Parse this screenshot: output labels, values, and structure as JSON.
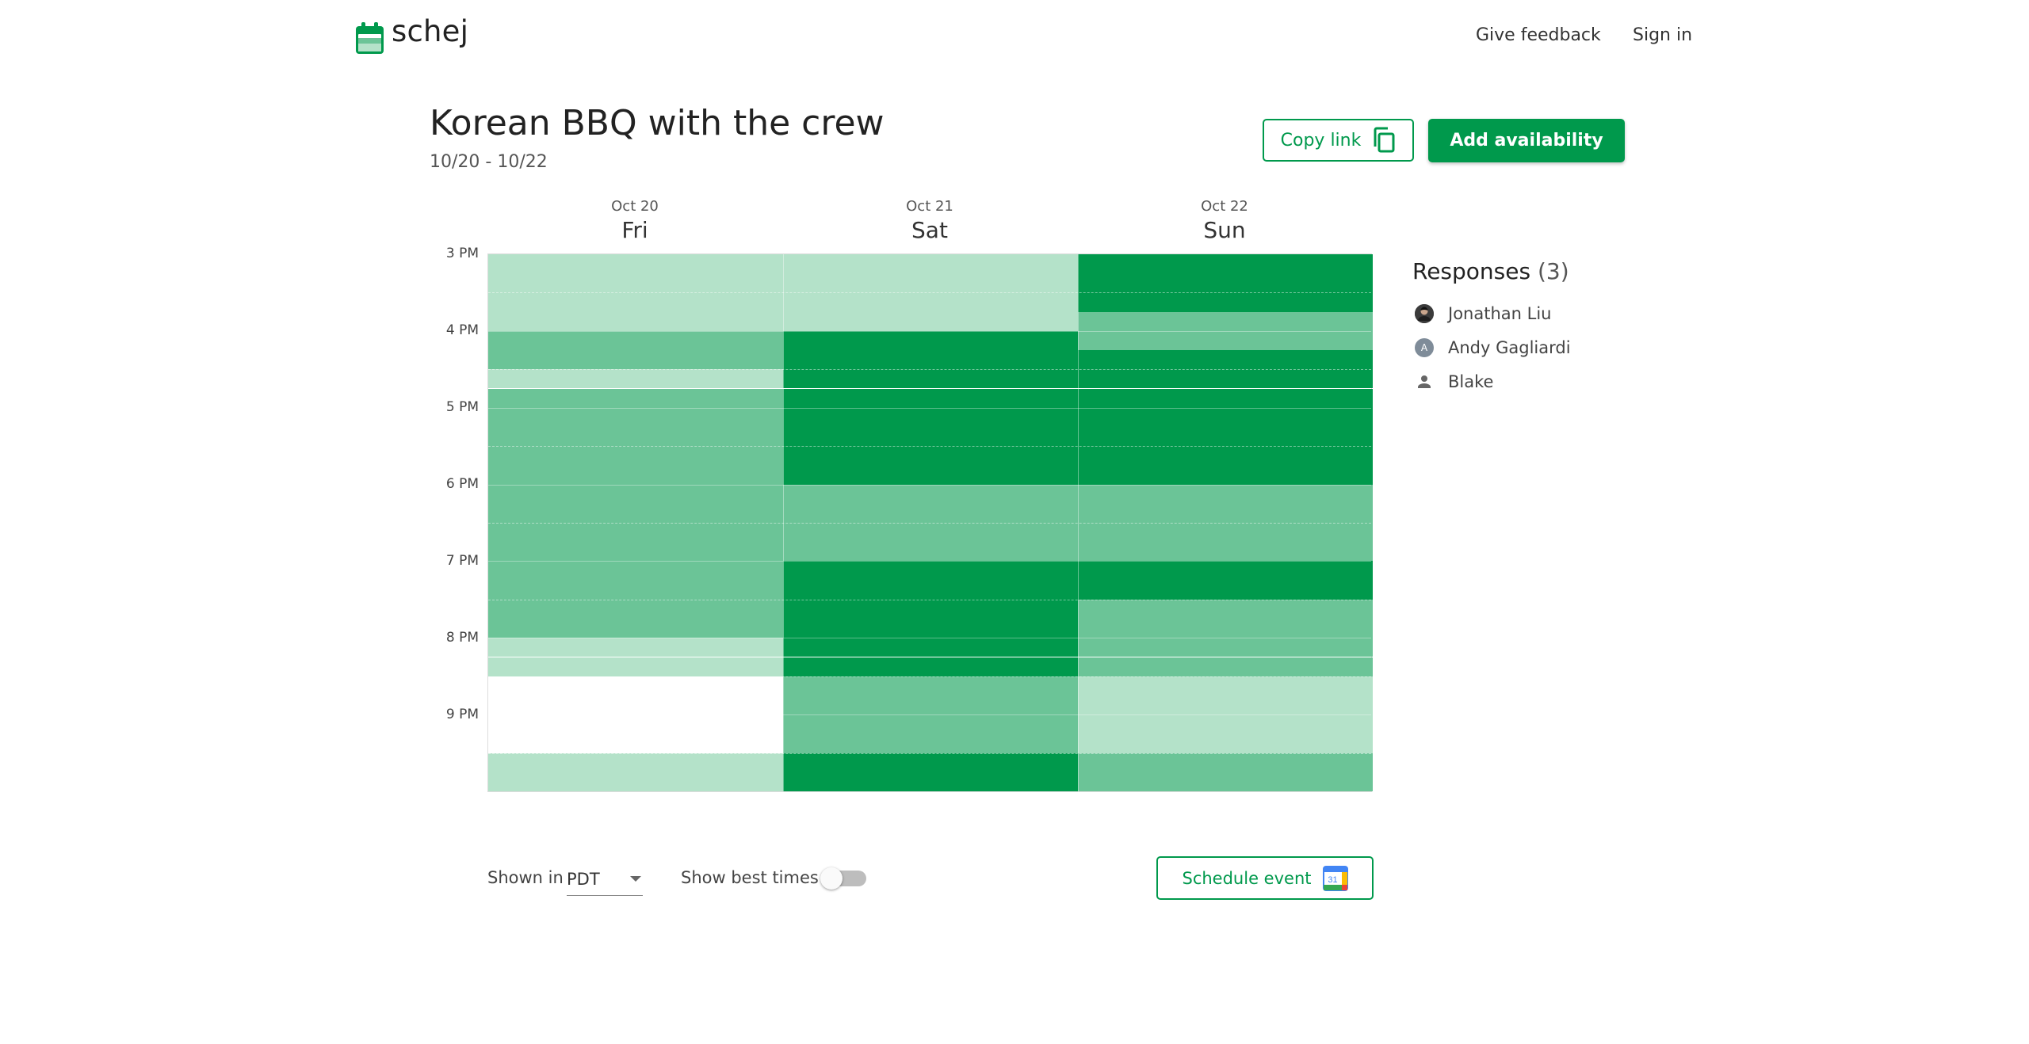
{
  "header": {
    "logo_text": "schej",
    "links": {
      "feedback": "Give feedback",
      "signin": "Sign in"
    }
  },
  "event": {
    "title": "Korean BBQ with the crew",
    "dates": "10/20 - 10/22"
  },
  "actions": {
    "copy_link": "Copy link",
    "add_availability": "Add availability"
  },
  "days": [
    {
      "date": "Oct 20",
      "name": "Fri"
    },
    {
      "date": "Oct 21",
      "name": "Sat"
    },
    {
      "date": "Oct 22",
      "name": "Sun"
    }
  ],
  "time_labels": [
    "3 PM",
    "4 PM",
    "5 PM",
    "6 PM",
    "7 PM",
    "8 PM",
    "9 PM"
  ],
  "availability": {
    "total_responses": 3,
    "slot_minutes": 15,
    "start_time": "3 PM",
    "colors": [
      "#ffffff",
      "#b4e2c9",
      "#6bc497",
      "#00994c"
    ],
    "counts": [
      [
        1,
        1,
        1,
        1,
        2,
        2,
        1,
        2,
        2,
        2,
        2,
        2,
        2,
        2,
        2,
        2,
        2,
        2,
        2,
        2,
        1,
        1,
        0,
        0,
        0,
        0,
        1,
        1
      ],
      [
        1,
        1,
        1,
        1,
        3,
        3,
        3,
        3,
        3,
        3,
        3,
        3,
        2,
        2,
        2,
        2,
        3,
        3,
        3,
        3,
        3,
        3,
        2,
        2,
        2,
        2,
        3,
        3
      ],
      [
        3,
        3,
        3,
        2,
        2,
        3,
        3,
        3,
        3,
        3,
        3,
        3,
        2,
        2,
        2,
        2,
        3,
        3,
        2,
        2,
        2,
        2,
        1,
        1,
        1,
        1,
        2,
        2
      ]
    ]
  },
  "responses": {
    "title": "Responses",
    "count": "(3)",
    "people": [
      {
        "name": "Jonathan Liu",
        "icon": "photo-avatar"
      },
      {
        "name": "Andy Gagliardi",
        "initial": "A",
        "icon": "letter-avatar"
      },
      {
        "name": "Blake",
        "icon": "person-icon"
      }
    ]
  },
  "footer": {
    "shown_in": "Shown in",
    "timezone": "PDT",
    "show_best_times": "Show best times",
    "best_times_on": false,
    "schedule_event": "Schedule event",
    "calendar_icon_text": "31"
  }
}
